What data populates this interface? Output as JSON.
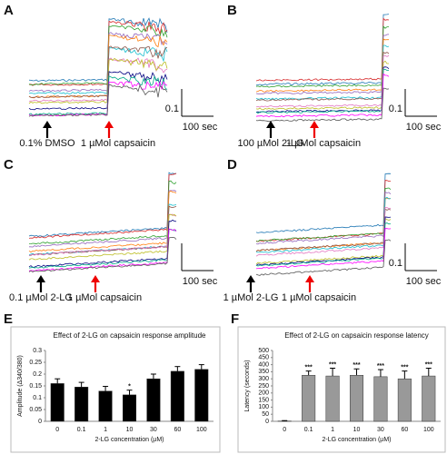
{
  "trace_panels": [
    {
      "label": "A",
      "stimulus_1": "0.1% DMSO",
      "stimulus_2": "1 µMol capsaicin",
      "scale_y": "0.1",
      "scale_x": "100 sec"
    },
    {
      "label": "B",
      "stimulus_1": "100 µMol 2-LG",
      "stimulus_2": "1 µMol capsaicin",
      "scale_y": "0.1",
      "scale_x": "100 sec"
    },
    {
      "label": "C",
      "stimulus_1": "0.1 µMol 2-LG",
      "stimulus_2": "1 µMol capsaicin",
      "scale_x": "100 sec"
    },
    {
      "label": "D",
      "stimulus_1": "1 µMol 2-LG",
      "stimulus_2": "1 µMol capsaicin",
      "scale_y": "0.1",
      "scale_x": "100 sec"
    }
  ],
  "chart_data": [
    {
      "type": "bar",
      "panel": "E",
      "title": "Effect of 2-LG on capsaicin response amplitude",
      "y_label": "Amplitude (Δ340/380)",
      "x_label": "2-LG concentration (µM)",
      "categories": [
        "0",
        "0.1",
        "1",
        "10",
        "30",
        "60",
        "100"
      ],
      "values": [
        0.16,
        0.145,
        0.128,
        0.112,
        0.18,
        0.212,
        0.22
      ],
      "errors": [
        0.02,
        0.02,
        0.02,
        0.02,
        0.02,
        0.02,
        0.02
      ],
      "significance": [
        null,
        null,
        null,
        "*",
        null,
        null,
        null
      ],
      "color": "#000000",
      "ylim": [
        0,
        0.3
      ],
      "yticks": [
        0,
        0.05,
        0.1,
        0.15,
        0.2,
        0.25,
        0.3
      ]
    },
    {
      "type": "bar",
      "panel": "F",
      "title": "Effect of 2-LG on capsaicin response latency",
      "y_label": "Latency (seconds)",
      "x_label": "2-LG concentration (µM)",
      "categories": [
        "0",
        "0.1",
        "1",
        "10",
        "30",
        "60",
        "100"
      ],
      "values": [
        2,
        325,
        320,
        325,
        315,
        300,
        320
      ],
      "errors": [
        3,
        30,
        55,
        45,
        50,
        55,
        55
      ],
      "significance": [
        null,
        "***",
        "***",
        "***",
        "***",
        "***",
        "***"
      ],
      "color": "#999999",
      "ylim": [
        0,
        500
      ],
      "yticks": [
        0,
        50,
        100,
        150,
        200,
        250,
        300,
        350,
        400,
        450,
        500
      ]
    }
  ]
}
